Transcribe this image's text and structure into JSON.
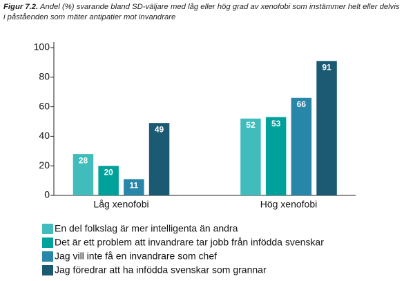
{
  "chart_data": {
    "type": "bar",
    "figure_label": "Figur 7.2.",
    "title": "Andel (%) svarande bland SD-väljare med låg eller hög grad av xenofobi som instämmer helt eller delvis i påståenden som mäter antipatier mot invandrare",
    "categories": [
      "Låg xenofobi",
      "Hög xenofobi"
    ],
    "series": [
      {
        "name": "En del folkslag är mer intelligenta än andra",
        "color": "#40bcbc",
        "values": [
          28,
          52
        ]
      },
      {
        "name": "Det är ett problem att invandrare tar jobb från infödda svenskar",
        "color": "#00a19b",
        "values": [
          20,
          53
        ]
      },
      {
        "name": "Jag vill inte få en invandrare som chef",
        "color": "#2886a8",
        "values": [
          11,
          66
        ]
      },
      {
        "name": "Jag föredrar att ha infödda svenskar som grannar",
        "color": "#1b5a72",
        "values": [
          49,
          91
        ]
      }
    ],
    "ylim": [
      0,
      100
    ],
    "yticks": [
      0,
      20,
      40,
      60,
      80,
      100
    ],
    "grid": false,
    "data_labels": true
  }
}
